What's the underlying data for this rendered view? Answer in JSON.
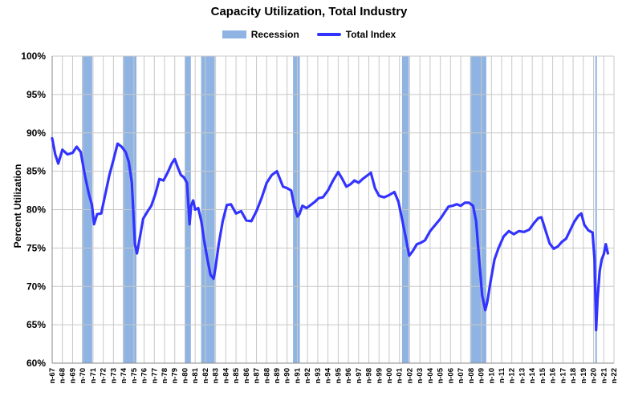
{
  "chart_data": {
    "type": "line",
    "title": "Capacity Utilization, Total Industry",
    "xlabel": "",
    "ylabel": "Percent Utilization",
    "ylim": [
      60,
      100
    ],
    "yticks": [
      "60%",
      "65%",
      "70%",
      "75%",
      "80%",
      "85%",
      "90%",
      "95%",
      "100%"
    ],
    "xticks": [
      "n-67",
      "n-68",
      "n-69",
      "n-70",
      "n-71",
      "n-72",
      "n-73",
      "n-74",
      "n-75",
      "n-76",
      "n-77",
      "n-78",
      "n-79",
      "n-80",
      "n-81",
      "n-82",
      "n-83",
      "n-84",
      "n-85",
      "n-86",
      "n-87",
      "n-88",
      "n-89",
      "n-90",
      "n-91",
      "n-92",
      "n-93",
      "n-94",
      "n-95",
      "n-96",
      "n-97",
      "n-98",
      "n-99",
      "n-00",
      "n-01",
      "n-02",
      "n-03",
      "n-04",
      "n-05",
      "n-06",
      "n-07",
      "n-08",
      "n-09",
      "n-10",
      "n-11",
      "n-12",
      "n-13",
      "n-14",
      "n-15",
      "n-16",
      "n-17",
      "n-18",
      "n-19",
      "n-20",
      "n-21",
      "n-22"
    ],
    "xlim": [
      1967.0,
      2022.0
    ],
    "grid": true,
    "legend_position": "top",
    "legend": [
      {
        "name": "Recession",
        "color": "#8fb4e3"
      },
      {
        "name": "Total Index",
        "color": "#3333ff"
      }
    ],
    "recessions": [
      [
        1969.92,
        1970.92
      ],
      [
        1973.92,
        1975.25
      ],
      [
        1980.0,
        1980.58
      ],
      [
        1981.58,
        1982.92
      ],
      [
        1990.58,
        1991.25
      ],
      [
        2001.25,
        2001.92
      ],
      [
        2007.92,
        2009.5
      ],
      [
        2020.17,
        2020.33
      ]
    ],
    "series": [
      {
        "name": "Total Index",
        "color": "#3333ff",
        "x": [
          1967.0,
          1967.3,
          1967.6,
          1968.0,
          1968.5,
          1969.0,
          1969.4,
          1969.8,
          1970.2,
          1970.6,
          1970.9,
          1971.1,
          1971.4,
          1971.8,
          1972.2,
          1972.6,
          1973.0,
          1973.4,
          1973.8,
          1974.2,
          1974.5,
          1974.8,
          1975.1,
          1975.3,
          1975.6,
          1975.9,
          1976.3,
          1976.7,
          1977.1,
          1977.5,
          1977.9,
          1978.3,
          1978.7,
          1979.0,
          1979.3,
          1979.6,
          1979.9,
          1980.2,
          1980.45,
          1980.6,
          1980.8,
          1981.0,
          1981.3,
          1981.6,
          1981.9,
          1982.2,
          1982.5,
          1982.8,
          1983.0,
          1983.3,
          1983.7,
          1984.1,
          1984.5,
          1985.0,
          1985.5,
          1986.0,
          1986.5,
          1987.0,
          1987.5,
          1988.0,
          1988.5,
          1989.0,
          1989.3,
          1989.6,
          1990.0,
          1990.4,
          1990.7,
          1991.0,
          1991.2,
          1991.5,
          1991.9,
          1992.3,
          1992.7,
          1993.1,
          1993.5,
          1994.0,
          1994.5,
          1995.0,
          1995.4,
          1995.8,
          1996.2,
          1996.6,
          1997.0,
          1997.4,
          1997.8,
          1998.2,
          1998.6,
          1999.0,
          1999.5,
          2000.0,
          2000.5,
          2000.9,
          2001.3,
          2001.7,
          2001.95,
          2002.3,
          2002.7,
          2003.1,
          2003.5,
          2004.0,
          2004.5,
          2005.0,
          2005.5,
          2005.8,
          2006.2,
          2006.6,
          2007.0,
          2007.4,
          2007.8,
          2008.2,
          2008.5,
          2008.8,
          2009.1,
          2009.4,
          2009.6,
          2009.9,
          2010.3,
          2010.7,
          2011.2,
          2011.7,
          2012.2,
          2012.7,
          2013.2,
          2013.7,
          2014.2,
          2014.6,
          2014.9,
          2015.3,
          2015.7,
          2016.1,
          2016.5,
          2016.9,
          2017.3,
          2017.7,
          2018.1,
          2018.5,
          2018.8,
          2019.1,
          2019.5,
          2019.9,
          2020.1,
          2020.25,
          2020.4,
          2020.6,
          2020.8,
          2021.0,
          2021.2,
          2021.4
        ],
        "values": [
          89.3,
          87.2,
          86.0,
          87.8,
          87.2,
          87.4,
          88.2,
          87.5,
          84.5,
          82.0,
          80.6,
          78.1,
          79.4,
          79.5,
          82.0,
          84.5,
          86.5,
          88.6,
          88.2,
          87.5,
          86.2,
          83.5,
          75.5,
          74.3,
          76.5,
          78.8,
          79.7,
          80.5,
          82.0,
          84.0,
          83.8,
          84.8,
          86.0,
          86.6,
          85.5,
          84.5,
          84.2,
          83.5,
          78.1,
          80.5,
          81.2,
          80.0,
          80.2,
          78.5,
          75.8,
          73.5,
          71.5,
          71.0,
          72.5,
          75.5,
          78.5,
          80.6,
          80.7,
          79.5,
          79.8,
          78.6,
          78.5,
          79.8,
          81.5,
          83.5,
          84.5,
          85.0,
          84.0,
          83.0,
          82.8,
          82.5,
          80.5,
          79.1,
          79.4,
          80.5,
          80.2,
          80.6,
          81.0,
          81.5,
          81.6,
          82.5,
          83.8,
          84.9,
          84.0,
          83.0,
          83.3,
          83.8,
          83.5,
          84.0,
          84.4,
          84.8,
          82.8,
          81.8,
          81.6,
          81.9,
          82.3,
          81.0,
          78.5,
          75.8,
          74.0,
          74.6,
          75.5,
          75.7,
          76.0,
          77.2,
          78.0,
          78.8,
          79.8,
          80.4,
          80.5,
          80.7,
          80.5,
          80.9,
          80.9,
          80.5,
          78.5,
          73.5,
          68.8,
          66.9,
          68.0,
          70.5,
          73.5,
          75.0,
          76.5,
          77.2,
          76.8,
          77.2,
          77.1,
          77.4,
          78.3,
          78.9,
          79.0,
          77.3,
          75.6,
          74.9,
          75.2,
          75.8,
          76.2,
          77.3,
          78.4,
          79.2,
          79.5,
          78.0,
          77.3,
          77.0,
          73.5,
          64.3,
          68.5,
          72.0,
          73.5,
          74.2,
          75.5,
          74.3
        ]
      }
    ]
  }
}
